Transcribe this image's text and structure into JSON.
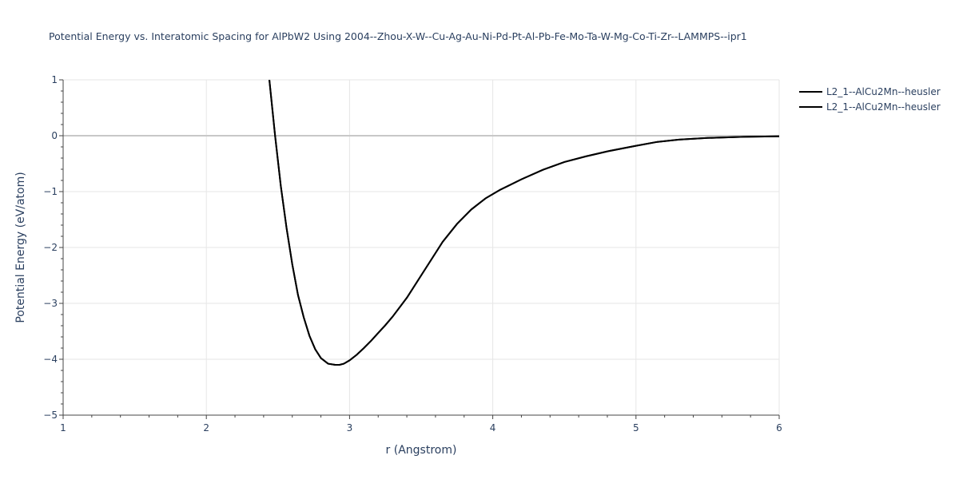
{
  "chart_data": {
    "type": "line",
    "title": "Potential Energy vs. Interatomic Spacing for AlPbW2 Using 2004--Zhou-X-W--Cu-Ag-Au-Ni-Pd-Pt-Al-Pb-Fe-Mo-Ta-W-Mg-Co-Ti-Zr--LAMMPS--ipr1",
    "xlabel": "r (Angstrom)",
    "ylabel": "Potential Energy (eV/atom)",
    "xlim": [
      1,
      6
    ],
    "ylim": [
      -5,
      1
    ],
    "xticks": [
      1,
      2,
      3,
      4,
      5,
      6
    ],
    "yticks": [
      1,
      0,
      -1,
      -2,
      -3,
      -4,
      -5
    ],
    "xtick_labels": [
      "1",
      "2",
      "3",
      "4",
      "5",
      "6"
    ],
    "ytick_labels": [
      "1",
      "0",
      "−1",
      "−2",
      "−3",
      "−4",
      "−5"
    ],
    "grid": true,
    "legend_position": "top-right",
    "colors": {
      "line": "#000000",
      "grid": "#e6e6e6",
      "zeroline": "#c8c8c8",
      "text": "#2a3f5f",
      "axis": "#444444"
    },
    "series": [
      {
        "name": "L2_1--AlCu2Mn--heusler",
        "x": [
          2.44,
          2.48,
          2.52,
          2.56,
          2.6,
          2.64,
          2.68,
          2.72,
          2.76,
          2.8,
          2.85,
          2.9,
          2.93,
          2.96,
          3.0,
          3.05,
          3.1,
          3.15,
          3.2,
          3.25,
          3.3,
          3.4,
          3.5,
          3.6,
          3.65,
          3.75,
          3.85,
          3.95,
          4.05,
          4.2,
          4.35,
          4.5,
          4.65,
          4.8,
          5.0,
          5.15,
          5.3,
          5.5,
          5.75,
          6.0
        ],
        "y": [
          1.0,
          0.0,
          -0.9,
          -1.65,
          -2.3,
          -2.85,
          -3.25,
          -3.58,
          -3.82,
          -3.98,
          -4.08,
          -4.1,
          -4.1,
          -4.08,
          -4.02,
          -3.92,
          -3.8,
          -3.67,
          -3.53,
          -3.39,
          -3.24,
          -2.9,
          -2.5,
          -2.1,
          -1.9,
          -1.58,
          -1.32,
          -1.12,
          -0.97,
          -0.78,
          -0.61,
          -0.47,
          -0.37,
          -0.28,
          -0.18,
          -0.11,
          -0.07,
          -0.04,
          -0.02,
          -0.01
        ]
      },
      {
        "name": "L2_1--AlCu2Mn--heusler",
        "x": [
          2.44,
          2.48,
          2.52,
          2.56,
          2.6,
          2.64,
          2.68,
          2.72,
          2.76,
          2.8,
          2.85,
          2.9,
          2.93,
          2.96,
          3.0,
          3.05,
          3.1,
          3.15,
          3.2,
          3.25,
          3.3,
          3.4,
          3.5,
          3.6,
          3.65,
          3.75,
          3.85,
          3.95,
          4.05,
          4.2,
          4.35,
          4.5,
          4.65,
          4.8,
          5.0,
          5.15,
          5.3,
          5.5,
          5.75,
          6.0
        ],
        "y": [
          1.0,
          0.0,
          -0.9,
          -1.65,
          -2.3,
          -2.85,
          -3.25,
          -3.58,
          -3.82,
          -3.98,
          -4.08,
          -4.1,
          -4.1,
          -4.08,
          -4.02,
          -3.92,
          -3.8,
          -3.67,
          -3.53,
          -3.39,
          -3.24,
          -2.9,
          -2.5,
          -2.1,
          -1.9,
          -1.58,
          -1.32,
          -1.12,
          -0.97,
          -0.78,
          -0.61,
          -0.47,
          -0.37,
          -0.28,
          -0.18,
          -0.11,
          -0.07,
          -0.04,
          -0.02,
          -0.01
        ]
      }
    ]
  }
}
